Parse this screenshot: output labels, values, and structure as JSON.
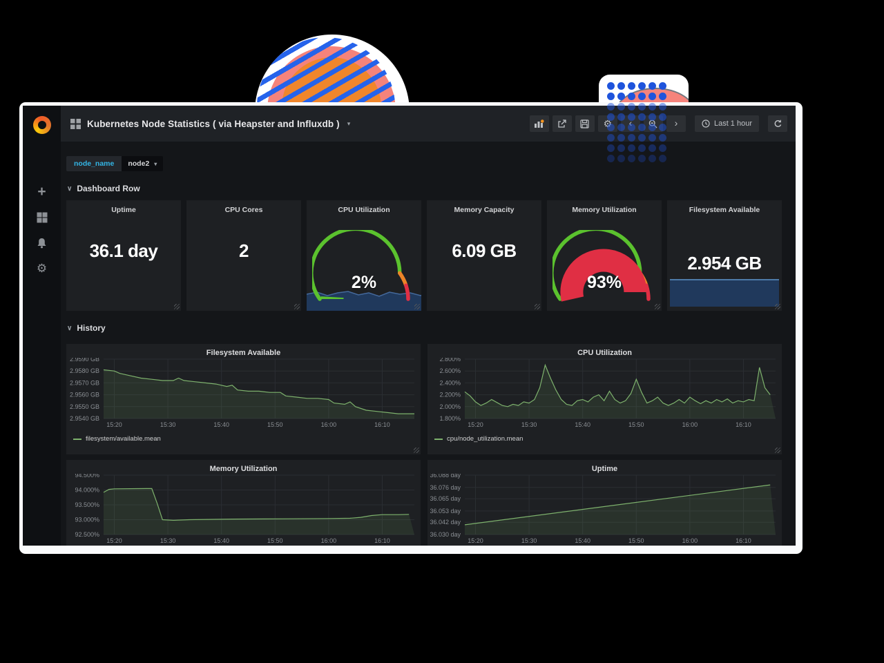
{
  "navbar": {
    "title": "Kubernetes Node Statistics ( via Heapster and Influxdb )",
    "caret": "▾",
    "time_range": "Last 1 hour"
  },
  "variables": {
    "label": "node_name",
    "value": "node2",
    "caret": "▾"
  },
  "rows": [
    {
      "label": "Dashboard Row"
    },
    {
      "label": "History"
    }
  ],
  "stat_panels": [
    {
      "title": "Uptime",
      "value": "36.1 day",
      "type": "text"
    },
    {
      "title": "CPU Cores",
      "value": "2",
      "type": "text"
    },
    {
      "title": "CPU Utilization",
      "value": "2%",
      "type": "gauge",
      "percent": 2
    },
    {
      "title": "Memory Capacity",
      "value": "6.09 GB",
      "type": "text"
    },
    {
      "title": "Memory Utilization",
      "value": "93%",
      "type": "gauge",
      "percent": 93
    },
    {
      "title": "Filesystem Available",
      "value": "2.954 GB",
      "type": "text_spark"
    }
  ],
  "gauge_thresholds": [
    {
      "to": 80,
      "color": "#5bc22e"
    },
    {
      "to": 90,
      "color": "#ec8428"
    },
    {
      "to": 100,
      "color": "#e02f44"
    }
  ],
  "chart_data": [
    {
      "type": "line",
      "title": "Filesystem Available",
      "xlim": [
        0,
        58
      ],
      "x_ticks": [
        {
          "v": 2,
          "label": "15:20"
        },
        {
          "v": 12,
          "label": "15:30"
        },
        {
          "v": 22,
          "label": "15:40"
        },
        {
          "v": 32,
          "label": "15:50"
        },
        {
          "v": 42,
          "label": "16:00"
        },
        {
          "v": 52,
          "label": "16:10"
        }
      ],
      "ylim": [
        2.954,
        2.959
      ],
      "y_ticks": [
        {
          "v": 2.959,
          "label": "2.9590 GB"
        },
        {
          "v": 2.958,
          "label": "2.9580 GB"
        },
        {
          "v": 2.957,
          "label": "2.9570 GB"
        },
        {
          "v": 2.956,
          "label": "2.9560 GB"
        },
        {
          "v": 2.955,
          "label": "2.9550 GB"
        },
        {
          "v": 2.954,
          "label": "2.9540 GB"
        }
      ],
      "legend": "filesystem/available.mean",
      "series": [
        {
          "name": "filesystem/available.mean",
          "color": "#7eb26d",
          "points": [
            [
              0,
              2.9581
            ],
            [
              2,
              2.958
            ],
            [
              3,
              2.9578
            ],
            [
              5,
              2.9576
            ],
            [
              7,
              2.9574
            ],
            [
              9,
              2.9573
            ],
            [
              11,
              2.9572
            ],
            [
              13,
              2.9572
            ],
            [
              14,
              2.9574
            ],
            [
              15,
              2.9572
            ],
            [
              17,
              2.9571
            ],
            [
              19,
              2.957
            ],
            [
              21,
              2.9569
            ],
            [
              23,
              2.9567
            ],
            [
              24,
              2.9568
            ],
            [
              25,
              2.9564
            ],
            [
              27,
              2.9563
            ],
            [
              29,
              2.9563
            ],
            [
              31,
              2.9562
            ],
            [
              33,
              2.9562
            ],
            [
              34,
              2.9559
            ],
            [
              36,
              2.9558
            ],
            [
              38,
              2.9557
            ],
            [
              40,
              2.9557
            ],
            [
              42,
              2.9556
            ],
            [
              43,
              2.9553
            ],
            [
              45,
              2.9552
            ],
            [
              46,
              2.9554
            ],
            [
              47,
              2.955
            ],
            [
              49,
              2.9547
            ],
            [
              51,
              2.9546
            ],
            [
              53,
              2.9545
            ],
            [
              55,
              2.9544
            ],
            [
              58,
              2.9544
            ]
          ]
        }
      ]
    },
    {
      "type": "line",
      "title": "CPU Utilization",
      "xlim": [
        0,
        58
      ],
      "x_ticks": [
        {
          "v": 2,
          "label": "15:20"
        },
        {
          "v": 12,
          "label": "15:30"
        },
        {
          "v": 22,
          "label": "15:40"
        },
        {
          "v": 32,
          "label": "15:50"
        },
        {
          "v": 42,
          "label": "16:00"
        },
        {
          "v": 52,
          "label": "16:10"
        }
      ],
      "ylim": [
        1.8,
        2.8
      ],
      "y_ticks": [
        {
          "v": 2.8,
          "label": "2.800%"
        },
        {
          "v": 2.6,
          "label": "2.600%"
        },
        {
          "v": 2.4,
          "label": "2.400%"
        },
        {
          "v": 2.2,
          "label": "2.200%"
        },
        {
          "v": 2.0,
          "label": "2.000%"
        },
        {
          "v": 1.8,
          "label": "1.800%"
        }
      ],
      "legend": "cpu/node_utilization.mean",
      "series": [
        {
          "name": "cpu/node_utilization.mean",
          "color": "#7eb26d",
          "points": [
            [
              0,
              2.25
            ],
            [
              1,
              2.18
            ],
            [
              2,
              2.08
            ],
            [
              3,
              2.02
            ],
            [
              4,
              2.06
            ],
            [
              5,
              2.12
            ],
            [
              6,
              2.07
            ],
            [
              7,
              2.02
            ],
            [
              8,
              2.0
            ],
            [
              9,
              2.04
            ],
            [
              10,
              2.02
            ],
            [
              11,
              2.08
            ],
            [
              12,
              2.06
            ],
            [
              13,
              2.12
            ],
            [
              14,
              2.32
            ],
            [
              15,
              2.7
            ],
            [
              16,
              2.48
            ],
            [
              17,
              2.28
            ],
            [
              18,
              2.12
            ],
            [
              19,
              2.04
            ],
            [
              20,
              2.02
            ],
            [
              21,
              2.1
            ],
            [
              22,
              2.12
            ],
            [
              23,
              2.08
            ],
            [
              24,
              2.16
            ],
            [
              25,
              2.2
            ],
            [
              26,
              2.1
            ],
            [
              27,
              2.26
            ],
            [
              28,
              2.12
            ],
            [
              29,
              2.06
            ],
            [
              30,
              2.1
            ],
            [
              31,
              2.22
            ],
            [
              32,
              2.46
            ],
            [
              33,
              2.24
            ],
            [
              34,
              2.06
            ],
            [
              35,
              2.1
            ],
            [
              36,
              2.16
            ],
            [
              37,
              2.06
            ],
            [
              38,
              2.02
            ],
            [
              39,
              2.06
            ],
            [
              40,
              2.12
            ],
            [
              41,
              2.06
            ],
            [
              42,
              2.16
            ],
            [
              43,
              2.1
            ],
            [
              44,
              2.05
            ],
            [
              45,
              2.1
            ],
            [
              46,
              2.06
            ],
            [
              47,
              2.12
            ],
            [
              48,
              2.08
            ],
            [
              49,
              2.13
            ],
            [
              50,
              2.06
            ],
            [
              51,
              2.1
            ],
            [
              52,
              2.08
            ],
            [
              53,
              2.12
            ],
            [
              54,
              2.1
            ],
            [
              55,
              2.66
            ],
            [
              56,
              2.32
            ],
            [
              57,
              2.2
            ]
          ]
        }
      ]
    },
    {
      "type": "line",
      "title": "Memory Utilization",
      "xlim": [
        0,
        58
      ],
      "x_ticks": [
        {
          "v": 2,
          "label": "15:20"
        },
        {
          "v": 12,
          "label": "15:30"
        },
        {
          "v": 22,
          "label": "15:40"
        },
        {
          "v": 32,
          "label": "15:50"
        },
        {
          "v": 42,
          "label": "16:00"
        },
        {
          "v": 52,
          "label": "16:10"
        }
      ],
      "ylim": [
        92.5,
        94.5
      ],
      "y_ticks": [
        {
          "v": 94.5,
          "label": "94.500%"
        },
        {
          "v": 94.0,
          "label": "94.000%"
        },
        {
          "v": 93.5,
          "label": "93.500%"
        },
        {
          "v": 93.0,
          "label": "93.000%"
        },
        {
          "v": 92.5,
          "label": "92.500%"
        }
      ],
      "series": [
        {
          "color": "#7eb26d",
          "points": [
            [
              0,
              93.92
            ],
            [
              1,
              94.02
            ],
            [
              2,
              94.04
            ],
            [
              8,
              94.05
            ],
            [
              9,
              94.05
            ],
            [
              10,
              93.55
            ],
            [
              11,
              93.0
            ],
            [
              13,
              92.98
            ],
            [
              16,
              93.0
            ],
            [
              24,
              93.02
            ],
            [
              34,
              93.03
            ],
            [
              42,
              93.04
            ],
            [
              46,
              93.05
            ],
            [
              48,
              93.08
            ],
            [
              50,
              93.14
            ],
            [
              52,
              93.17
            ],
            [
              55,
              93.17
            ],
            [
              57,
              93.18
            ]
          ]
        }
      ]
    },
    {
      "type": "line",
      "title": "Uptime",
      "xlim": [
        0,
        58
      ],
      "x_ticks": [
        {
          "v": 2,
          "label": "15:20"
        },
        {
          "v": 12,
          "label": "15:30"
        },
        {
          "v": 22,
          "label": "15:40"
        },
        {
          "v": 32,
          "label": "15:50"
        },
        {
          "v": 42,
          "label": "16:00"
        },
        {
          "v": 52,
          "label": "16:10"
        }
      ],
      "ylim": [
        36.03,
        36.088
      ],
      "y_ticks": [
        {
          "v": 36.088,
          "label": "36.088 day"
        },
        {
          "v": 36.076,
          "label": "36.076 day"
        },
        {
          "v": 36.065,
          "label": "36.065 day"
        },
        {
          "v": 36.053,
          "label": "36.053 day"
        },
        {
          "v": 36.042,
          "label": "36.042 day"
        },
        {
          "v": 36.03,
          "label": "36.030 day"
        }
      ],
      "series": [
        {
          "color": "#7eb26d",
          "points": [
            [
              0,
              36.0395
            ],
            [
              57,
              36.0785
            ]
          ]
        }
      ]
    }
  ],
  "colors": {
    "page_bg": "#141619",
    "panel_bg": "#1e2023",
    "accent_green": "#7eb26d",
    "gauge_green": "#5bc22e",
    "gauge_orange": "#ec8428",
    "gauge_red": "#e02f44",
    "spark_navy": "#20395c",
    "variable_blue": "#33b5e5",
    "decor_blue": "#2563eb",
    "decor_pink": "#f5837b",
    "decor_orange": "#f0862b"
  }
}
